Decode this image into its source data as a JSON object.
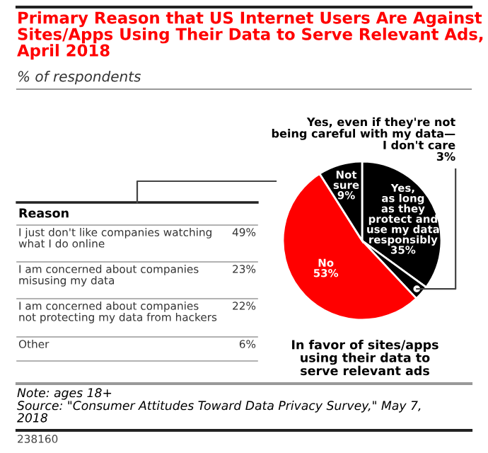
{
  "chart_data": {
    "type": "pie",
    "title": "Primary Reason that US Internet Users Are Against Sites/Apps Using Their Data to Serve Relevant Ads, April 2018",
    "subtitle": "% of respondents",
    "categories": [
      "Yes,\nas long\nas they\nprotect and\nuse my data\nresponsibly",
      "Yes, even if they're not\nbeing careful with my data—\nI don't care",
      "No",
      "Not\nsure"
    ],
    "values": [
      35,
      3,
      53,
      9
    ],
    "value_labels": [
      "35%",
      "3%",
      "53%",
      "9%"
    ],
    "colors": [
      "#000000",
      "#000000",
      "#ff0000",
      "#000000"
    ],
    "annotations": [
      "Reason",
      "I just don't like companies watching\nwhat I do online",
      "49%",
      "I am concerned about companies\nmisusing my data",
      "23%",
      "I am concerned about companies\nnot protecting my data from hackers",
      "22%",
      "Other",
      "6%",
      "In favor of sites/apps\nusing their data to\nserve relevant ads",
      "Note: ages 18+",
      "Source: \"Consumer Attitudes Toward Data Privacy Survey,\" May 7,\n2018",
      "238160"
    ]
  }
}
